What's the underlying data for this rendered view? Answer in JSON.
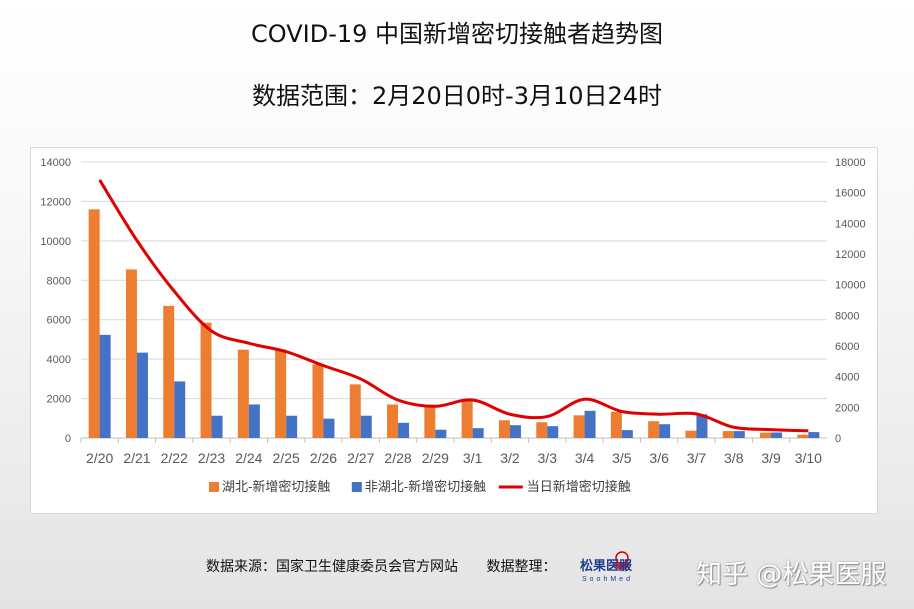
{
  "title": "COVID-19 中国新增密切接触者趋势图",
  "subtitle": "数据范围：2月20日0时-3月10日24时",
  "footer": {
    "source": "数据来源：国家卫生健康委员会官方网站",
    "organizer": "数据整理：",
    "logo_text": "松果医服",
    "logo_sub": "SoohMed",
    "watermark": "知乎 @松果医服"
  },
  "colors": {
    "hubei": "#ed7d31",
    "non_hubei": "#4472c4",
    "total": "#e00000"
  },
  "chart_data": {
    "type": "bar",
    "title": "COVID-19 中国新增密切接触者趋势图",
    "categories": [
      "2/20",
      "2/21",
      "2/22",
      "2/23",
      "2/24",
      "2/25",
      "2/26",
      "2/27",
      "2/28",
      "2/29",
      "3/1",
      "3/2",
      "3/3",
      "3/4",
      "3/5",
      "3/6",
      "3/7",
      "3/8",
      "3/9",
      "3/10"
    ],
    "series": [
      {
        "name": "湖北-新增密切接触",
        "type": "bar",
        "axis": "left",
        "values": [
          11600,
          8550,
          6700,
          5850,
          4480,
          4500,
          3740,
          2720,
          1700,
          1650,
          1980,
          900,
          800,
          1150,
          1330,
          850,
          370,
          350,
          270,
          170
        ]
      },
      {
        "name": "非湖北-新增密切接触",
        "type": "bar",
        "axis": "left",
        "values": [
          5230,
          4330,
          2870,
          1130,
          1700,
          1130,
          980,
          1130,
          770,
          420,
          500,
          650,
          600,
          1380,
          400,
          700,
          1200,
          350,
          280,
          300
        ]
      },
      {
        "name": "当日新增密切接触",
        "type": "line",
        "axis": "right",
        "values": [
          16830,
          12880,
          9570,
          6980,
          6180,
          5630,
          4720,
          3850,
          2470,
          2070,
          2480,
          1550,
          1400,
          2530,
          1730,
          1550,
          1570,
          700,
          550,
          470
        ]
      }
    ],
    "left_axis": {
      "ylim": [
        0,
        14000
      ],
      "ticks": [
        0,
        2000,
        4000,
        6000,
        8000,
        10000,
        12000,
        14000
      ]
    },
    "right_axis": {
      "ylim": [
        0,
        18000
      ],
      "ticks": [
        0,
        2000,
        4000,
        6000,
        8000,
        10000,
        12000,
        14000,
        16000,
        18000
      ]
    },
    "grid": true,
    "legend": "bottom"
  }
}
